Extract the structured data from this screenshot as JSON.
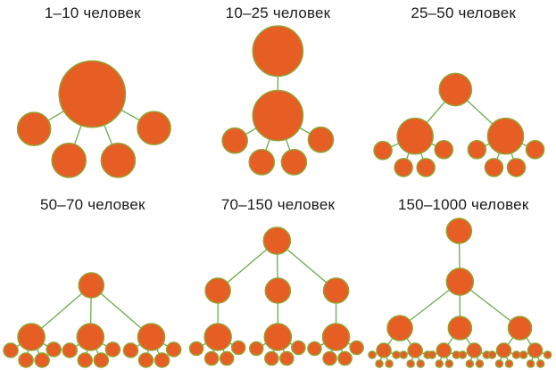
{
  "style": {
    "node_fill": "#E65E23",
    "node_stroke": "#98A033",
    "link_color": "#6BAC4C",
    "title_color": "#1A1A1A",
    "background": "#FFFFFF"
  },
  "panels": [
    {
      "title": "1–10 человек",
      "nodes": [
        [
          103,
          105,
          37
        ],
        [
          38,
          144,
          18.5
        ],
        [
          77,
          179,
          19
        ],
        [
          132,
          179,
          19
        ],
        [
          172,
          143,
          18.5
        ]
      ],
      "edges": [
        [
          0,
          1
        ],
        [
          0,
          2
        ],
        [
          0,
          3
        ],
        [
          0,
          4
        ]
      ]
    },
    {
      "title": "10–25 человек",
      "nodes": [
        [
          103,
          57,
          28
        ],
        [
          103,
          129,
          28
        ],
        [
          55,
          157,
          14
        ],
        [
          85,
          181,
          14
        ],
        [
          121,
          181,
          14
        ],
        [
          151,
          156,
          14
        ]
      ],
      "edges": [
        [
          0,
          1
        ],
        [
          1,
          2
        ],
        [
          1,
          3
        ],
        [
          1,
          4
        ],
        [
          1,
          5
        ]
      ]
    },
    {
      "title": "25–50 человек",
      "nodes": [
        [
          95,
          100,
          18
        ],
        [
          50,
          152,
          20
        ],
        [
          151,
          152,
          20
        ],
        [
          14,
          168,
          10
        ],
        [
          37,
          187,
          10
        ],
        [
          62,
          187,
          10
        ],
        [
          82,
          167,
          10
        ],
        [
          119,
          167,
          10
        ],
        [
          138,
          187,
          10
        ],
        [
          163,
          187,
          10
        ],
        [
          184,
          167,
          10
        ]
      ],
      "edges": [
        [
          0,
          1
        ],
        [
          0,
          2
        ],
        [
          1,
          3
        ],
        [
          1,
          4
        ],
        [
          1,
          5
        ],
        [
          1,
          6
        ],
        [
          2,
          7
        ],
        [
          2,
          8
        ],
        [
          2,
          9
        ],
        [
          2,
          10
        ]
      ]
    },
    {
      "title": "50–70 человек",
      "nodes": [
        [
          102,
          112,
          14
        ],
        [
          35,
          170,
          15
        ],
        [
          101,
          170,
          15
        ],
        [
          169,
          170,
          15
        ],
        [
          12,
          185,
          8
        ],
        [
          29,
          196,
          8
        ],
        [
          47,
          196,
          8
        ],
        [
          60,
          184,
          8
        ],
        [
          78,
          185,
          8
        ],
        [
          95,
          196,
          8
        ],
        [
          113,
          196,
          8
        ],
        [
          126,
          184,
          8
        ],
        [
          146,
          185,
          8
        ],
        [
          163,
          196,
          8
        ],
        [
          181,
          196,
          8
        ],
        [
          194,
          184,
          8
        ]
      ],
      "edges": [
        [
          0,
          1
        ],
        [
          0,
          2
        ],
        [
          0,
          3
        ],
        [
          1,
          4
        ],
        [
          1,
          5
        ],
        [
          1,
          6
        ],
        [
          1,
          7
        ],
        [
          2,
          8
        ],
        [
          2,
          9
        ],
        [
          2,
          10
        ],
        [
          2,
          11
        ],
        [
          3,
          12
        ],
        [
          3,
          13
        ],
        [
          3,
          14
        ],
        [
          3,
          15
        ]
      ]
    },
    {
      "title": "70–150 человек",
      "nodes": [
        [
          102,
          62,
          15
        ],
        [
          36,
          118,
          14
        ],
        [
          103,
          118,
          14
        ],
        [
          168,
          118,
          14
        ],
        [
          36,
          170,
          15
        ],
        [
          103,
          170,
          15
        ],
        [
          168,
          170,
          15
        ],
        [
          12,
          183,
          7.5
        ],
        [
          29,
          194,
          7.5
        ],
        [
          46,
          194,
          7.5
        ],
        [
          59,
          182,
          7.5
        ],
        [
          79,
          183,
          7.5
        ],
        [
          96,
          194,
          7.5
        ],
        [
          113,
          194,
          7.5
        ],
        [
          126,
          182,
          7.5
        ],
        [
          144,
          183,
          7.5
        ],
        [
          161,
          194,
          7.5
        ],
        [
          178,
          194,
          7.5
        ],
        [
          191,
          182,
          7.5
        ]
      ],
      "edges": [
        [
          0,
          1
        ],
        [
          0,
          2
        ],
        [
          0,
          3
        ],
        [
          1,
          4
        ],
        [
          2,
          5
        ],
        [
          3,
          6
        ],
        [
          4,
          7
        ],
        [
          4,
          8
        ],
        [
          4,
          9
        ],
        [
          4,
          10
        ],
        [
          5,
          11
        ],
        [
          5,
          12
        ],
        [
          5,
          13
        ],
        [
          5,
          14
        ],
        [
          6,
          15
        ],
        [
          6,
          16
        ],
        [
          6,
          17
        ],
        [
          6,
          18
        ]
      ]
    },
    {
      "title": "150–1000 человек",
      "nodes": [
        [
          99,
          51,
          14
        ],
        [
          100,
          108,
          15
        ],
        [
          33,
          160,
          14
        ],
        [
          100,
          160,
          13
        ],
        [
          167,
          160,
          13
        ],
        [
          15,
          185,
          8
        ],
        [
          50,
          185,
          8
        ],
        [
          82,
          185,
          8
        ],
        [
          116,
          185,
          8
        ],
        [
          149,
          185,
          8
        ],
        [
          184,
          185,
          8
        ],
        [
          2,
          190,
          4
        ],
        [
          10,
          200,
          4
        ],
        [
          21,
          200,
          4
        ],
        [
          29,
          190,
          4
        ],
        [
          37,
          190,
          4
        ],
        [
          45,
          200,
          4
        ],
        [
          56,
          200,
          4
        ],
        [
          64,
          190,
          4
        ],
        [
          69,
          190,
          4
        ],
        [
          77,
          200,
          4
        ],
        [
          88,
          200,
          4
        ],
        [
          96,
          190,
          4
        ],
        [
          103,
          190,
          4
        ],
        [
          111,
          200,
          4
        ],
        [
          122,
          200,
          4
        ],
        [
          130,
          190,
          4
        ],
        [
          136,
          190,
          4
        ],
        [
          144,
          200,
          4
        ],
        [
          155,
          200,
          4
        ],
        [
          163,
          190,
          4
        ],
        [
          171,
          190,
          4
        ],
        [
          179,
          200,
          4
        ],
        [
          190,
          200,
          4
        ],
        [
          198,
          190,
          4
        ]
      ],
      "edges": [
        [
          0,
          1
        ],
        [
          1,
          2
        ],
        [
          1,
          3
        ],
        [
          1,
          4
        ],
        [
          2,
          5
        ],
        [
          2,
          6
        ],
        [
          3,
          7
        ],
        [
          3,
          8
        ],
        [
          4,
          9
        ],
        [
          4,
          10
        ],
        [
          5,
          11
        ],
        [
          5,
          12
        ],
        [
          5,
          13
        ],
        [
          5,
          14
        ],
        [
          6,
          15
        ],
        [
          6,
          16
        ],
        [
          6,
          17
        ],
        [
          6,
          18
        ],
        [
          7,
          19
        ],
        [
          7,
          20
        ],
        [
          7,
          21
        ],
        [
          7,
          22
        ],
        [
          8,
          23
        ],
        [
          8,
          24
        ],
        [
          8,
          25
        ],
        [
          8,
          26
        ],
        [
          9,
          27
        ],
        [
          9,
          28
        ],
        [
          9,
          29
        ],
        [
          9,
          30
        ],
        [
          10,
          31
        ],
        [
          10,
          32
        ],
        [
          10,
          33
        ],
        [
          10,
          34
        ]
      ]
    }
  ]
}
